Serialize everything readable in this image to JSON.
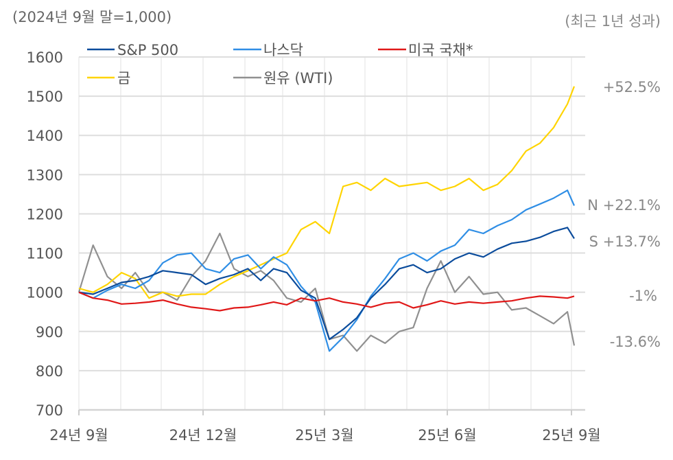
{
  "chart_data": {
    "type": "line",
    "subtitle_left": "(2024년 9월 말=1,000)",
    "subtitle_right": "(최근 1년 성과)",
    "ylim": [
      700,
      1600
    ],
    "yticks": [
      "1600",
      "1500",
      "1400",
      "1300",
      "1200",
      "1100",
      "1000",
      "900",
      "800",
      "700"
    ],
    "ytick_values": [
      1600,
      1500,
      1400,
      1300,
      1200,
      1100,
      1000,
      900,
      800,
      700
    ],
    "xlim": [
      0,
      12.2
    ],
    "xticks": [
      {
        "label": "24년 9월",
        "month": 0
      },
      {
        "label": "24년 12월",
        "month": 3
      },
      {
        "label": "25년 3월",
        "month": 6
      },
      {
        "label": "25년 6월",
        "month": 9
      },
      {
        "label": "25년 9월",
        "month": 12
      }
    ],
    "grid": true,
    "legend_position": "top-left",
    "series": [
      {
        "name": "S&P 500",
        "color": "#0b4c9c",
        "end_label": "S +13.7%",
        "x": [
          0,
          0.34,
          0.68,
          1.02,
          1.36,
          1.7,
          2.04,
          2.38,
          2.72,
          3.06,
          3.4,
          3.74,
          4.08,
          4.42,
          4.76,
          5.1,
          5.44,
          5.78,
          6.12,
          6.46,
          6.8,
          7.14,
          7.48,
          7.82,
          8.16,
          8.5,
          8.84,
          9.18,
          9.52,
          9.86,
          10.2,
          10.54,
          10.88,
          11.22,
          11.56,
          11.9,
          12.2
        ],
        "values": [
          1000,
          995,
          1010,
          1025,
          1030,
          1040,
          1055,
          1050,
          1045,
          1020,
          1035,
          1045,
          1060,
          1030,
          1060,
          1050,
          1005,
          985,
          880,
          905,
          935,
          985,
          1020,
          1060,
          1070,
          1050,
          1060,
          1085,
          1100,
          1090,
          1110,
          1125,
          1130,
          1140,
          1155,
          1165,
          1137
        ]
      },
      {
        "name": "나스닥",
        "color": "#2f8ee5",
        "end_label": "N +22.1%",
        "x": [
          0,
          0.34,
          0.68,
          1.02,
          1.36,
          1.7,
          2.04,
          2.38,
          2.72,
          3.06,
          3.4,
          3.74,
          4.08,
          4.42,
          4.76,
          5.1,
          5.44,
          5.78,
          6.12,
          6.46,
          6.8,
          7.14,
          7.48,
          7.82,
          8.16,
          8.5,
          8.84,
          9.18,
          9.52,
          9.86,
          10.2,
          10.54,
          10.88,
          11.22,
          11.56,
          11.9,
          12.2
        ],
        "values": [
          1000,
          985,
          1005,
          1020,
          1010,
          1030,
          1075,
          1095,
          1100,
          1060,
          1050,
          1085,
          1095,
          1060,
          1090,
          1070,
          1015,
          975,
          850,
          885,
          930,
          990,
          1035,
          1085,
          1100,
          1080,
          1105,
          1120,
          1160,
          1150,
          1170,
          1185,
          1210,
          1225,
          1240,
          1260,
          1221
        ]
      },
      {
        "name": "미국 국채*",
        "color": "#e01818",
        "end_label": "-1%",
        "x": [
          0,
          0.34,
          0.68,
          1.02,
          1.36,
          1.7,
          2.04,
          2.38,
          2.72,
          3.06,
          3.4,
          3.74,
          4.08,
          4.42,
          4.76,
          5.1,
          5.44,
          5.78,
          6.12,
          6.46,
          6.8,
          7.14,
          7.48,
          7.82,
          8.16,
          8.5,
          8.84,
          9.18,
          9.52,
          9.86,
          10.2,
          10.54,
          10.88,
          11.22,
          11.56,
          11.9,
          12.2
        ],
        "values": [
          1000,
          985,
          980,
          970,
          972,
          975,
          980,
          970,
          962,
          958,
          953,
          960,
          962,
          968,
          975,
          968,
          985,
          978,
          985,
          975,
          970,
          962,
          972,
          975,
          960,
          968,
          978,
          970,
          975,
          972,
          975,
          978,
          985,
          990,
          988,
          985,
          990
        ]
      },
      {
        "name": "금",
        "color": "#ffd400",
        "end_label": "+52.5%",
        "x": [
          0,
          0.34,
          0.68,
          1.02,
          1.36,
          1.7,
          2.04,
          2.38,
          2.72,
          3.06,
          3.4,
          3.74,
          4.08,
          4.42,
          4.76,
          5.1,
          5.44,
          5.78,
          6.12,
          6.46,
          6.8,
          7.14,
          7.48,
          7.82,
          8.16,
          8.5,
          8.84,
          9.18,
          9.52,
          9.86,
          10.2,
          10.54,
          10.88,
          11.22,
          11.56,
          11.9,
          12.2
        ],
        "values": [
          1010,
          1000,
          1020,
          1050,
          1035,
          985,
          1000,
          990,
          995,
          995,
          1020,
          1040,
          1055,
          1070,
          1085,
          1100,
          1160,
          1180,
          1150,
          1270,
          1280,
          1260,
          1290,
          1270,
          1275,
          1280,
          1260,
          1270,
          1290,
          1260,
          1275,
          1310,
          1360,
          1380,
          1420,
          1480,
          1525
        ]
      },
      {
        "name": "원유 (WTI)",
        "color": "#909090",
        "end_label": "-13.6%",
        "x": [
          0,
          0.34,
          0.68,
          1.02,
          1.36,
          1.7,
          2.04,
          2.38,
          2.72,
          3.06,
          3.4,
          3.74,
          4.08,
          4.42,
          4.76,
          5.1,
          5.44,
          5.78,
          6.12,
          6.46,
          6.8,
          7.14,
          7.48,
          7.82,
          8.16,
          8.5,
          8.84,
          9.18,
          9.52,
          9.86,
          10.2,
          10.54,
          10.88,
          11.22,
          11.56,
          11.9,
          12.2
        ],
        "values": [
          1000,
          1120,
          1040,
          1010,
          1050,
          1000,
          1000,
          980,
          1040,
          1080,
          1150,
          1060,
          1040,
          1055,
          1030,
          985,
          975,
          1010,
          880,
          890,
          850,
          890,
          870,
          900,
          910,
          1010,
          1080,
          1000,
          1040,
          995,
          1000,
          955,
          960,
          940,
          920,
          950,
          864
        ]
      }
    ]
  }
}
